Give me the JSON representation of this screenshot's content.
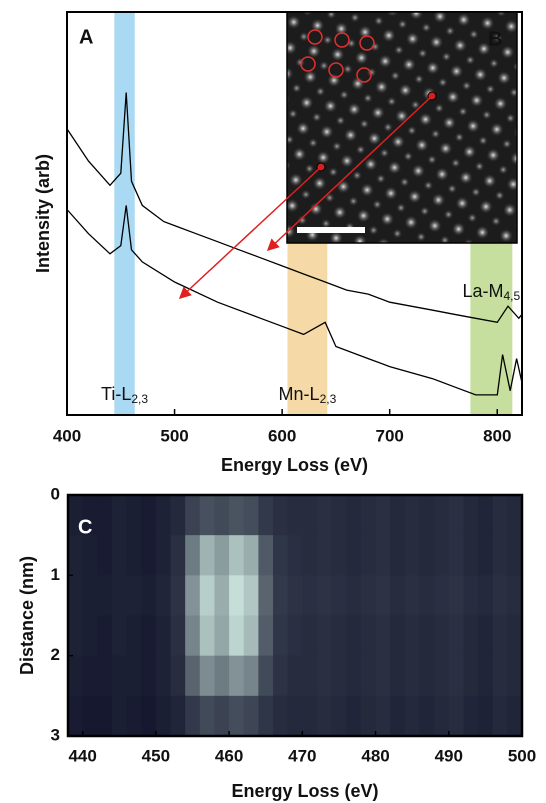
{
  "chart_data": [
    {
      "type": "line",
      "panel": "A",
      "xlabel": "Energy Loss (eV)",
      "ylabel": "Intensity (arb)",
      "xlim": [
        400,
        823
      ],
      "ylim": [
        0,
        100
      ],
      "xticks": [
        400,
        500,
        600,
        700,
        800
      ],
      "bands": [
        {
          "range": [
            444,
            463
          ],
          "color": "#aad9f3",
          "label": "Ti-L",
          "sub": "2,3"
        },
        {
          "range": [
            605,
            642
          ],
          "color": "#f5d9a6",
          "label": "Mn-L",
          "sub": "2,3"
        },
        {
          "range": [
            775,
            814
          ],
          "color": "#c6df9e",
          "label": "La-M",
          "sub": "4,5"
        }
      ],
      "inset_label": "B",
      "series": [
        {
          "color": "#000000",
          "x": [
            400,
            420,
            440,
            450,
            455,
            460,
            470,
            490,
            500,
            520,
            540,
            560,
            580,
            600,
            620,
            640,
            660,
            680,
            700,
            720,
            740,
            760,
            780,
            800,
            810,
            820,
            823
          ],
          "values": [
            71,
            63,
            57,
            60,
            80,
            58,
            52,
            48,
            47,
            45,
            43,
            41,
            39,
            37,
            35,
            33,
            31,
            30,
            28,
            27,
            26,
            25,
            24,
            23,
            27,
            24,
            25
          ]
        },
        {
          "color": "#000000",
          "x": [
            400,
            420,
            440,
            450,
            455,
            460,
            470,
            500,
            540,
            580,
            600,
            620,
            640,
            650,
            680,
            700,
            740,
            760,
            780,
            800,
            805,
            812,
            818,
            823
          ],
          "values": [
            51,
            45,
            40,
            42,
            52,
            41,
            38,
            33,
            28,
            24,
            22,
            20,
            23,
            17,
            14,
            12,
            9,
            7,
            5,
            5,
            15,
            6,
            14,
            8
          ]
        }
      ]
    },
    {
      "type": "heatmap",
      "panel": "C",
      "xlabel": "Energy Loss (eV)",
      "ylabel": "Distance (nm)",
      "xlim": [
        438,
        500
      ],
      "ylim": [
        0,
        3
      ],
      "xticks": [
        440,
        450,
        460,
        470,
        480,
        490,
        500
      ],
      "yticks": [
        0,
        1,
        2,
        3
      ],
      "zlim": [
        15,
        80
      ],
      "colors": [
        "#15182e",
        "#d4efe6"
      ],
      "x": [
        439,
        441,
        443,
        445,
        447,
        449,
        451,
        453,
        455,
        457,
        459,
        461,
        463,
        465,
        467,
        469,
        471,
        473,
        475,
        477,
        479,
        481,
        483,
        485,
        487,
        489,
        491,
        493,
        495,
        497,
        499
      ],
      "y": [
        0.25,
        0.75,
        1.25,
        1.75,
        2.25,
        2.75
      ],
      "z": [
        [
          17,
          16,
          16,
          18,
          17,
          16,
          18,
          20,
          28,
          32,
          30,
          33,
          31,
          25,
          22,
          21,
          21,
          22,
          21,
          20,
          21,
          22,
          20,
          21,
          20,
          21,
          22,
          20,
          19,
          21,
          20
        ],
        [
          18,
          17,
          16,
          18,
          17,
          16,
          18,
          22,
          45,
          62,
          55,
          66,
          60,
          35,
          24,
          22,
          21,
          22,
          21,
          20,
          21,
          22,
          20,
          21,
          20,
          21,
          22,
          20,
          19,
          21,
          20
        ],
        [
          18,
          17,
          17,
          18,
          18,
          17,
          19,
          23,
          52,
          70,
          60,
          75,
          68,
          38,
          25,
          23,
          22,
          23,
          22,
          21,
          22,
          23,
          21,
          22,
          21,
          22,
          23,
          21,
          20,
          22,
          21
        ],
        [
          18,
          17,
          16,
          18,
          17,
          16,
          18,
          22,
          48,
          66,
          58,
          72,
          64,
          36,
          24,
          22,
          21,
          22,
          21,
          20,
          21,
          22,
          20,
          21,
          20,
          21,
          22,
          20,
          19,
          21,
          20
        ],
        [
          17,
          16,
          16,
          17,
          17,
          16,
          18,
          21,
          38,
          50,
          45,
          52,
          48,
          30,
          23,
          21,
          21,
          22,
          21,
          20,
          21,
          22,
          20,
          21,
          20,
          21,
          22,
          20,
          19,
          21,
          20
        ],
        [
          16,
          15,
          15,
          17,
          16,
          15,
          17,
          19,
          25,
          30,
          28,
          31,
          29,
          24,
          21,
          20,
          20,
          21,
          20,
          19,
          20,
          21,
          19,
          20,
          19,
          20,
          21,
          19,
          18,
          20,
          19
        ]
      ]
    }
  ]
}
